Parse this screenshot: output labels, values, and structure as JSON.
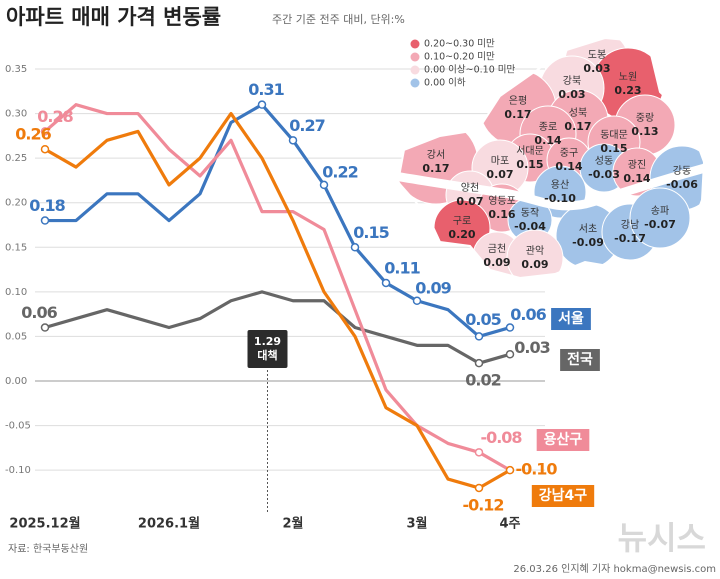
{
  "chart_data": {
    "type": "line",
    "title": "아파트 매매 가격 변동률",
    "subtitle": "주간 기준 전주 대비, 단위:%",
    "source": "자료: 한국부동산원",
    "credit": "26.03.26 인지혜 기자 hokma@newsis.com",
    "watermark": "뉴시스",
    "annotation": {
      "text": "1.29 대책"
    },
    "categories": [
      "2025.12월",
      null,
      null,
      null,
      "2026.1월",
      null,
      null,
      null,
      "2월",
      null,
      null,
      null,
      "3월",
      null,
      null,
      "4주"
    ],
    "ylim": [
      -0.12,
      0.35
    ],
    "yticks": [
      0.35,
      {
        "value": 0.3,
        "label": "0.30"
      },
      0.25,
      {
        "value": 0.2,
        "label": "0.20"
      },
      0.15,
      {
        "value": 0.1,
        "label": "0.10"
      },
      0.05,
      {
        "value": 0,
        "label": "0.00"
      },
      -0.05,
      {
        "value": -0.1,
        "label": "-0.10"
      }
    ],
    "grid": true,
    "series": [
      {
        "name": "서울",
        "color": "#3b76bf",
        "values": [
          0.18,
          0.18,
          0.21,
          0.21,
          0.18,
          0.21,
          0.29,
          0.31,
          0.27,
          0.22,
          0.15,
          0.11,
          0.09,
          0.08,
          0.05,
          0.06
        ],
        "value_labels": [
          "0.18",
          null,
          null,
          null,
          null,
          null,
          null,
          "0.31",
          "0.27",
          "0.22",
          "0.15",
          "0.11",
          "0.09",
          null,
          "0.05",
          "0.06"
        ]
      },
      {
        "name": "전국",
        "color": "#666666",
        "values": [
          0.06,
          0.07,
          0.08,
          0.07,
          0.06,
          0.07,
          0.09,
          0.1,
          0.09,
          0.09,
          0.06,
          0.05,
          0.04,
          0.04,
          0.02,
          0.03
        ],
        "value_labels": [
          "0.06",
          null,
          null,
          null,
          null,
          null,
          null,
          null,
          null,
          null,
          null,
          null,
          null,
          null,
          "0.02",
          "0.03"
        ]
      },
      {
        "name": "용산구",
        "color": "#f08b99",
        "values": [
          0.28,
          0.31,
          0.3,
          0.3,
          0.26,
          0.23,
          0.27,
          0.19,
          0.19,
          0.17,
          0.08,
          -0.01,
          -0.05,
          -0.07,
          -0.08,
          -0.1
        ],
        "value_labels": [
          "0.28",
          null,
          null,
          null,
          null,
          null,
          null,
          null,
          null,
          null,
          null,
          null,
          null,
          null,
          "-0.08",
          null
        ]
      },
      {
        "name": "강남4구",
        "color": "#ef7b0c",
        "values": [
          0.26,
          0.24,
          0.27,
          0.28,
          0.22,
          0.25,
          0.3,
          0.25,
          0.18,
          0.1,
          0.05,
          -0.03,
          -0.05,
          -0.11,
          -0.12,
          -0.1
        ],
        "value_labels": [
          "0.26",
          null,
          null,
          null,
          null,
          null,
          null,
          null,
          null,
          null,
          null,
          null,
          null,
          null,
          "-0.12",
          "-0.10"
        ]
      }
    ],
    "map": {
      "legend": [
        {
          "label": "0.20~0.30 미만",
          "color": "#e8606d"
        },
        {
          "label": "0.10~0.20 미만",
          "color": "#f3a9b5"
        },
        {
          "label": "0.00 이상~0.10 미만",
          "color": "#f8dbe0"
        },
        {
          "label": "0.00 이하",
          "color": "#a2c3e8"
        }
      ],
      "districts": [
        {
          "name": "도봉",
          "value": 0.03,
          "value_label": "0.03",
          "color": "#f8dbe0"
        },
        {
          "name": "노원",
          "value": 0.23,
          "value_label": "0.23",
          "color": "#e8606d"
        },
        {
          "name": "강북",
          "value": 0.03,
          "value_label": "0.03",
          "color": "#f8dbe0"
        },
        {
          "name": "은평",
          "value": 0.17,
          "value_label": "0.17",
          "color": "#f3a9b5"
        },
        {
          "name": "성북",
          "value": 0.17,
          "value_label": "0.17",
          "color": "#f3a9b5"
        },
        {
          "name": "중랑",
          "value": 0.13,
          "value_label": "0.13",
          "color": "#f3a9b5"
        },
        {
          "name": "종로",
          "value": 0.14,
          "value_label": "0.14",
          "color": "#f3a9b5"
        },
        {
          "name": "동대문",
          "value": 0.15,
          "value_label": "0.15",
          "color": "#f3a9b5"
        },
        {
          "name": "강서",
          "value": 0.17,
          "value_label": "0.17",
          "color": "#f3a9b5"
        },
        {
          "name": "서대문",
          "value": 0.15,
          "value_label": "0.15",
          "color": "#f3a9b5"
        },
        {
          "name": "마포",
          "value": 0.07,
          "value_label": "0.07",
          "color": "#f8dbe0"
        },
        {
          "name": "중구",
          "value": 0.14,
          "value_label": "0.14",
          "color": "#f3a9b5"
        },
        {
          "name": "성동",
          "value": -0.03,
          "value_label": "-0.03",
          "color": "#a2c3e8"
        },
        {
          "name": "광진",
          "value": 0.14,
          "value_label": "0.14",
          "color": "#f3a9b5"
        },
        {
          "name": "강동",
          "value": -0.06,
          "value_label": "-0.06",
          "color": "#a2c3e8"
        },
        {
          "name": "용산",
          "value": -0.1,
          "value_label": "-0.10",
          "color": "#a2c3e8"
        },
        {
          "name": "양천",
          "value": 0.07,
          "value_label": "0.07",
          "color": "#f8dbe0"
        },
        {
          "name": "영등포",
          "value": 0.16,
          "value_label": "0.16",
          "color": "#f3a9b5"
        },
        {
          "name": "동작",
          "value": -0.04,
          "value_label": "-0.04",
          "color": "#a2c3e8"
        },
        {
          "name": "서초",
          "value": -0.09,
          "value_label": "-0.09",
          "color": "#a2c3e8"
        },
        {
          "name": "강남",
          "value": -0.17,
          "value_label": "-0.17",
          "color": "#a2c3e8"
        },
        {
          "name": "송파",
          "value": -0.07,
          "value_label": "-0.07",
          "color": "#a2c3e8"
        },
        {
          "name": "구로",
          "value": 0.2,
          "value_label": "0.20",
          "color": "#e8606d"
        },
        {
          "name": "금천",
          "value": 0.09,
          "value_label": "0.09",
          "color": "#f8dbe0"
        },
        {
          "name": "관악",
          "value": 0.09,
          "value_label": "0.09",
          "color": "#f8dbe0"
        }
      ]
    }
  }
}
